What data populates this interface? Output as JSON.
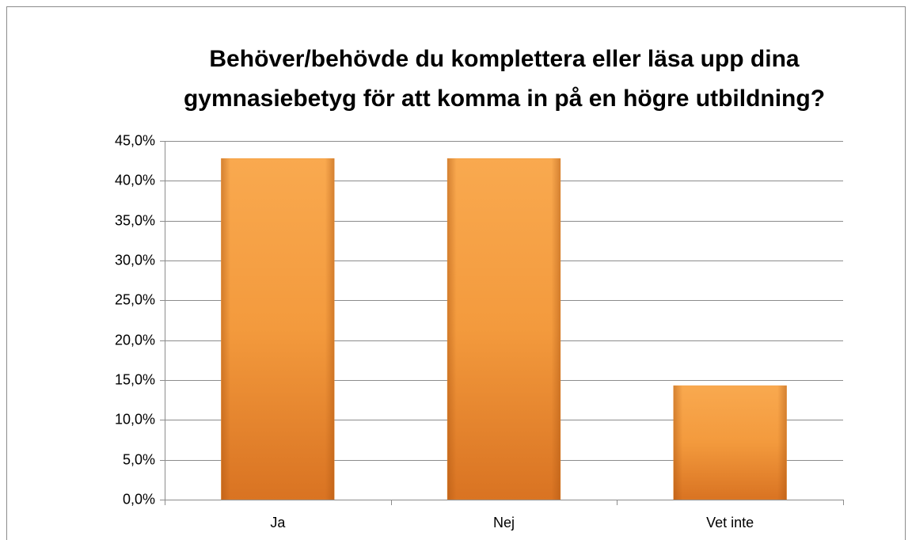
{
  "chart_data": {
    "type": "bar",
    "title": [
      "Behöver/behövde du komplettera eller läsa upp dina",
      "gymnasiebetyg för att komma in på en högre utbildning?"
    ],
    "categories": [
      "Ja",
      "Nej",
      "Vet inte"
    ],
    "values": [
      42.8,
      42.8,
      14.3
    ],
    "color": "#f39a3d",
    "ylim": [
      0,
      45
    ],
    "yticks": [
      {
        "value": 0,
        "label": "0,0%"
      },
      {
        "value": 5,
        "label": "5,0%"
      },
      {
        "value": 10,
        "label": "10,0%"
      },
      {
        "value": 15,
        "label": "15,0%"
      },
      {
        "value": 20,
        "label": "20,0%"
      },
      {
        "value": 25,
        "label": "25,0%"
      },
      {
        "value": 30,
        "label": "30,0%"
      },
      {
        "value": 35,
        "label": "35,0%"
      },
      {
        "value": 40,
        "label": "40,0%"
      },
      {
        "value": 45,
        "label": "45,0%"
      }
    ],
    "grid": true
  }
}
